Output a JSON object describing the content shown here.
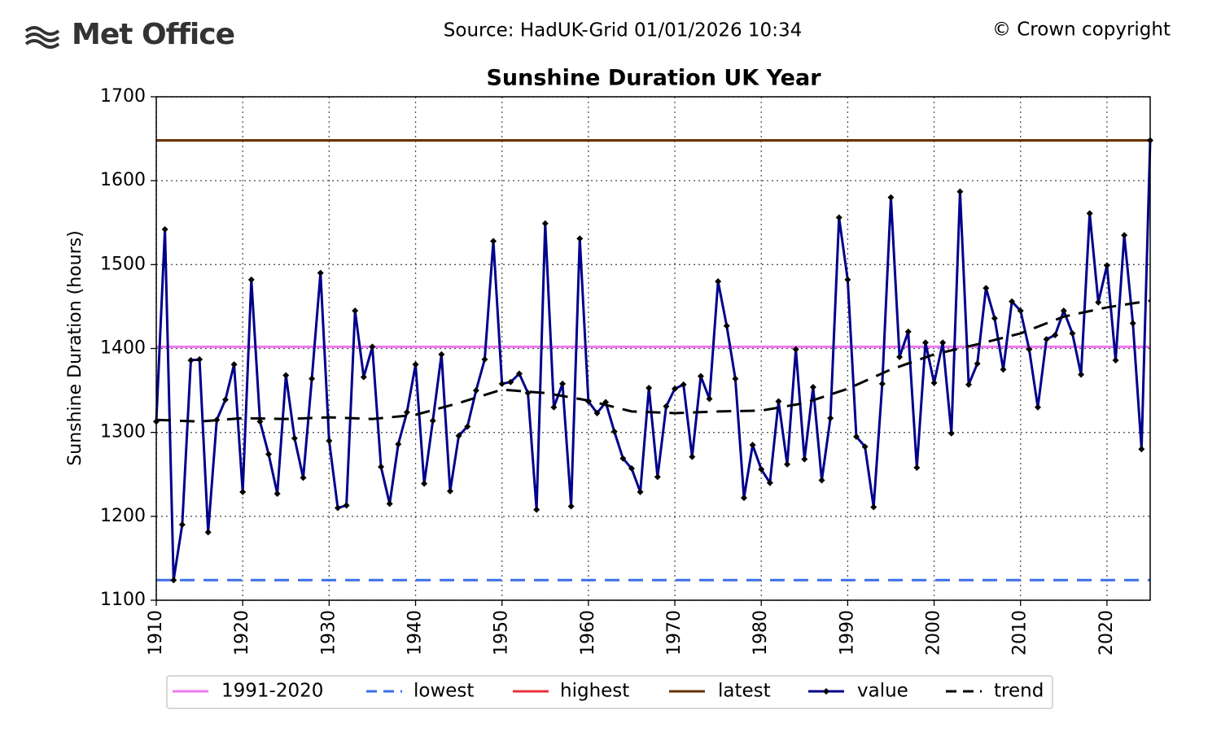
{
  "header": {
    "logo": "Met Office",
    "source": "Source: HadUK-Grid 01/01/2026 10:34",
    "copyright": "© Crown copyright"
  },
  "chart_data": {
    "type": "line",
    "title": "Sunshine Duration UK Year",
    "y_label": "Sunshine Duration (hours)",
    "x": [
      1910,
      1911,
      1912,
      1913,
      1914,
      1915,
      1916,
      1917,
      1918,
      1919,
      1920,
      1921,
      1922,
      1923,
      1924,
      1925,
      1926,
      1927,
      1928,
      1929,
      1930,
      1931,
      1932,
      1933,
      1934,
      1935,
      1936,
      1937,
      1938,
      1939,
      1940,
      1941,
      1942,
      1943,
      1944,
      1945,
      1946,
      1947,
      1948,
      1949,
      1950,
      1951,
      1952,
      1953,
      1954,
      1955,
      1956,
      1957,
      1958,
      1959,
      1960,
      1961,
      1962,
      1963,
      1964,
      1965,
      1966,
      1967,
      1968,
      1969,
      1970,
      1971,
      1972,
      1973,
      1974,
      1975,
      1976,
      1977,
      1978,
      1979,
      1980,
      1981,
      1982,
      1983,
      1984,
      1985,
      1986,
      1987,
      1988,
      1989,
      1990,
      1991,
      1992,
      1993,
      1994,
      1995,
      1996,
      1997,
      1998,
      1999,
      2000,
      2001,
      2002,
      2003,
      2004,
      2005,
      2006,
      2007,
      2008,
      2009,
      2010,
      2011,
      2012,
      2013,
      2014,
      2015,
      2016,
      2017,
      2018,
      2019,
      2020,
      2021,
      2022,
      2023,
      2024,
      2025
    ],
    "xlim": [
      1910,
      2025
    ],
    "xticks": [
      1910,
      1920,
      1930,
      1940,
      1950,
      1960,
      1970,
      1980,
      1990,
      2000,
      2010,
      2020
    ],
    "ylim": [
      1100,
      1700
    ],
    "yticks": [
      1100,
      1200,
      1300,
      1400,
      1500,
      1600,
      1700
    ],
    "grid": true,
    "reference_lines": [
      {
        "name": "1991-2020",
        "color": "#ee77ee",
        "value": 1402,
        "style": "solid"
      },
      {
        "name": "lowest",
        "color": "#3b6ee8",
        "value": 1124,
        "style": "dashed"
      },
      {
        "name": "highest",
        "color": "#e8303a",
        "value": 1648,
        "style": "solid"
      },
      {
        "name": "latest",
        "color": "#663300",
        "value": 1648,
        "style": "solid"
      }
    ],
    "series": [
      {
        "name": "value",
        "color": "#00008b",
        "style": "solid",
        "marker": "diamond",
        "values": [
          1313,
          1542,
          1124,
          1190,
          1386,
          1387,
          1181,
          1315,
          1339,
          1381,
          1229,
          1482,
          1313,
          1274,
          1227,
          1368,
          1293,
          1246,
          1364,
          1490,
          1290,
          1210,
          1213,
          1445,
          1366,
          1402,
          1259,
          1215,
          1286,
          1324,
          1381,
          1239,
          1314,
          1393,
          1230,
          1296,
          1307,
          1350,
          1387,
          1528,
          1358,
          1360,
          1370,
          1347,
          1208,
          1549,
          1330,
          1358,
          1212,
          1531,
          1337,
          1323,
          1336,
          1301,
          1269,
          1257,
          1229,
          1353,
          1247,
          1331,
          1352,
          1357,
          1271,
          1367,
          1340,
          1480,
          1427,
          1364,
          1222,
          1285,
          1256,
          1240,
          1337,
          1262,
          1399,
          1268,
          1354,
          1243,
          1317,
          1556,
          1482,
          1295,
          1283,
          1211,
          1358,
          1580,
          1390,
          1420,
          1258,
          1407,
          1359,
          1407,
          1299,
          1587,
          1357,
          1382,
          1472,
          1436,
          1375,
          1456,
          1445,
          1399,
          1330,
          1411,
          1416,
          1445,
          1418,
          1369,
          1561,
          1455,
          1499,
          1386,
          1535,
          1430,
          1280,
          1648
        ]
      },
      {
        "name": "trend",
        "color": "#000000",
        "style": "dashed",
        "x": [
          1910,
          1915,
          1920,
          1925,
          1930,
          1935,
          1940,
          1945,
          1950,
          1955,
          1960,
          1965,
          1970,
          1975,
          1980,
          1985,
          1990,
          1995,
          2000,
          2005,
          2010,
          2015,
          2020,
          2025
        ],
        "values": [
          1315,
          1313,
          1317,
          1316,
          1318,
          1316,
          1321,
          1335,
          1351,
          1347,
          1338,
          1325,
          1323,
          1325,
          1326,
          1335,
          1352,
          1375,
          1393,
          1405,
          1418,
          1438,
          1449,
          1457
        ]
      }
    ]
  }
}
